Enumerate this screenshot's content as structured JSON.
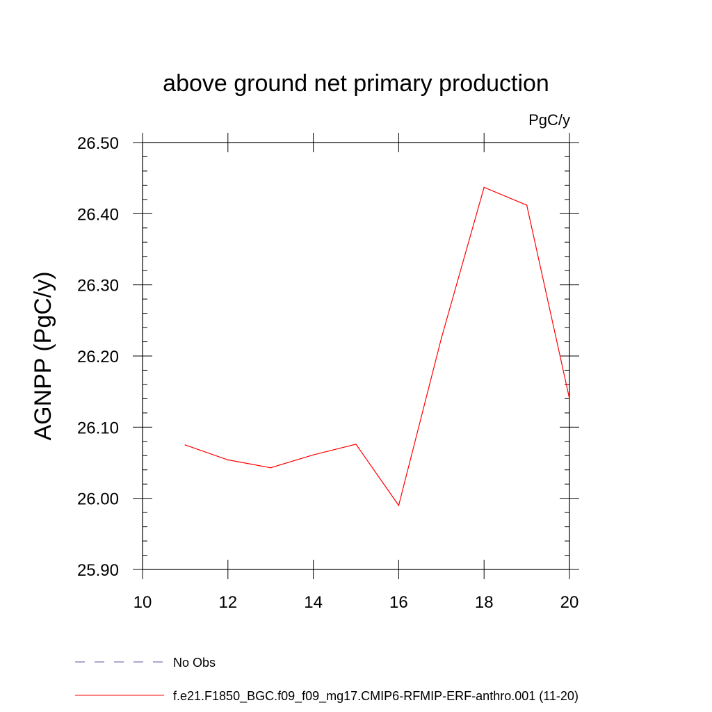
{
  "chart_data": {
    "type": "line",
    "title": "above ground net primary production",
    "units_label": "PgC/y",
    "xlabel": "",
    "ylabel": "AGNPP  (PgC/y)",
    "xlim": [
      10,
      20
    ],
    "ylim": [
      25.9,
      26.5
    ],
    "x_ticks": [
      10,
      12,
      14,
      16,
      18,
      20
    ],
    "y_ticks": [
      25.9,
      26.0,
      26.1,
      26.2,
      26.3,
      26.4,
      26.5
    ],
    "x_tick_labels": [
      "10",
      "12",
      "14",
      "16",
      "18",
      "20"
    ],
    "y_tick_labels": [
      "25.90",
      "26.00",
      "26.10",
      "26.20",
      "26.30",
      "26.40",
      "26.50"
    ],
    "grid": false,
    "series": [
      {
        "name": "f.e21.F1850_BGC.f09_f09_mg17.CMIP6-RFMIP-ERF-anthro.001 (11-20)",
        "color": "#ff0000",
        "dash": "solid",
        "x": [
          11,
          12,
          13,
          14,
          15,
          16,
          17,
          18,
          19,
          20
        ],
        "values": [
          26.075,
          26.054,
          26.043,
          26.061,
          26.076,
          25.99,
          26.225,
          26.437,
          26.412,
          26.14
        ]
      }
    ],
    "legend": [
      {
        "label": "No Obs",
        "color": "#5a4fa0",
        "dash": "dashed"
      },
      {
        "label": "f.e21.F1850_BGC.f09_f09_mg17.CMIP6-RFMIP-ERF-anthro.001 (11-20)",
        "color": "#ff0000",
        "dash": "solid"
      }
    ],
    "legend_position": "bottom-left"
  }
}
